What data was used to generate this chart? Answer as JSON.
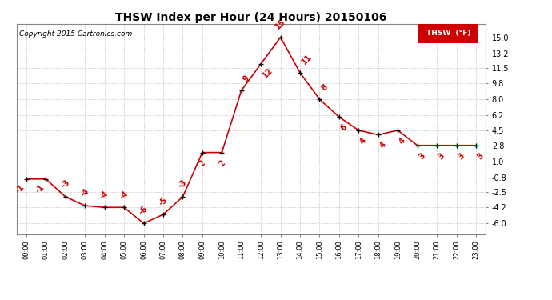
{
  "title": "THSW Index per Hour (24 Hours) 20150106",
  "copyright": "Copyright 2015 Cartronics.com",
  "legend_label": "THSW  (°F)",
  "hours": [
    0,
    1,
    2,
    3,
    4,
    5,
    6,
    7,
    8,
    9,
    10,
    11,
    12,
    13,
    14,
    15,
    16,
    17,
    18,
    19,
    20,
    21,
    22,
    23
  ],
  "values": [
    -1,
    -1,
    -3,
    -4,
    -4.2,
    -4.2,
    -6,
    -5,
    -3,
    2,
    2,
    9,
    12,
    15,
    11,
    8,
    6,
    4.5,
    4,
    4.5,
    2.8,
    2.8,
    2.8,
    2.8
  ],
  "line_color": "#cc0000",
  "marker_color": "#000000",
  "label_color": "#cc0000",
  "bg_color": "#ffffff",
  "grid_color": "#cccccc",
  "yticks": [
    -6.0,
    -4.2,
    -2.5,
    -0.8,
    1.0,
    2.8,
    4.5,
    6.2,
    8.0,
    9.8,
    11.5,
    13.2,
    15.0
  ],
  "ylim": [
    -7.2,
    16.5
  ],
  "xlim": [
    -0.5,
    23.5
  ]
}
